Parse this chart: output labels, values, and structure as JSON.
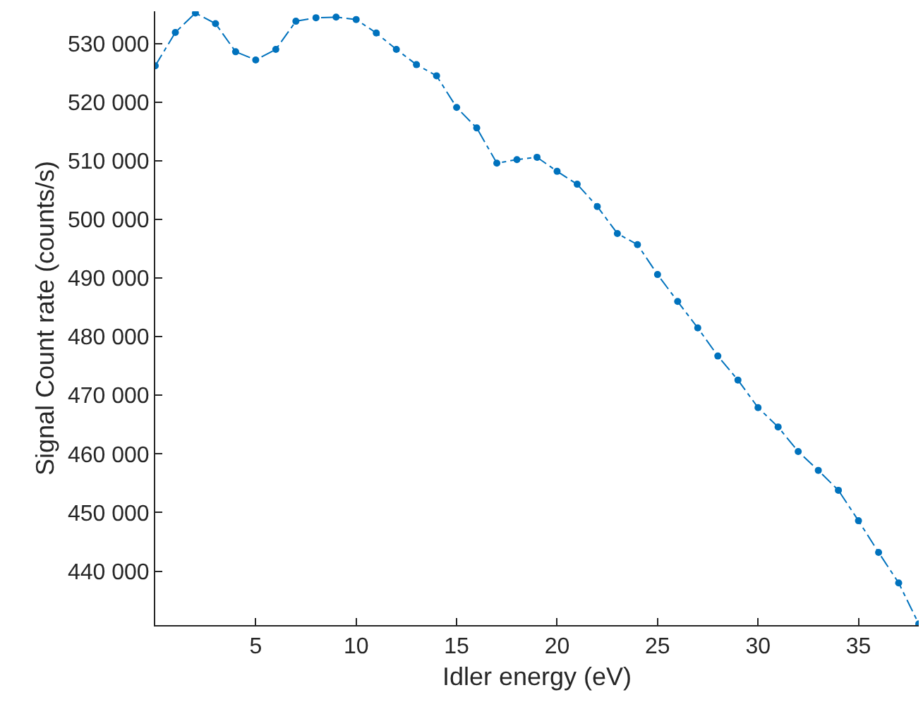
{
  "chart_data": {
    "type": "line",
    "xlabel": "Idler energy (eV)",
    "ylabel": "Signal Count rate (counts/s)",
    "x": [
      0,
      1,
      2,
      3,
      4,
      5,
      6,
      7,
      8,
      9,
      10,
      11,
      12,
      13,
      14,
      15,
      16,
      17,
      18,
      19,
      20,
      21,
      22,
      23,
      24,
      25,
      26,
      27,
      28,
      29,
      30,
      31,
      32,
      33,
      34,
      35,
      36,
      37,
      38
    ],
    "series": [
      {
        "color": "#0072bd",
        "values": [
          526200,
          531900,
          535200,
          533400,
          528600,
          527200,
          529000,
          533800,
          534400,
          534500,
          534100,
          531800,
          529000,
          526400,
          524500,
          519100,
          515600,
          509600,
          510200,
          510600,
          508200,
          506000,
          502200,
          497600,
          495700,
          490600,
          486000,
          481500,
          476700,
          472600,
          467900,
          464600,
          460400,
          457200,
          453800,
          448600,
          443200,
          438000,
          431000
        ]
      }
    ],
    "xlim": [
      0,
      38
    ],
    "xticks": [
      5,
      10,
      15,
      20,
      25,
      30,
      35
    ],
    "ylim": [
      430800,
      535500
    ],
    "yticks": [
      {
        "value": 440000,
        "label": "440 000"
      },
      {
        "value": 450000,
        "label": "450 000"
      },
      {
        "value": 460000,
        "label": "460 000"
      },
      {
        "value": 470000,
        "label": "470 000"
      },
      {
        "value": 480000,
        "label": "480 000"
      },
      {
        "value": 490000,
        "label": "490 000"
      },
      {
        "value": 500000,
        "label": "500 000"
      },
      {
        "value": 510000,
        "label": "510 000"
      },
      {
        "value": 520000,
        "label": "520 000"
      },
      {
        "value": 530000,
        "label": "530 000"
      }
    ],
    "grid": false,
    "marker": "circle",
    "line_style": "dashed"
  }
}
